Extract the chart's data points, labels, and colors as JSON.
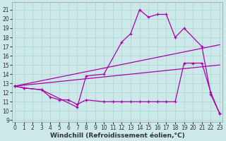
{
  "bg_color": "#cce8e8",
  "grid_color": "#aad4d4",
  "line_color": "#aa00aa",
  "xlim": [
    -0.3,
    23.3
  ],
  "ylim": [
    8.8,
    21.8
  ],
  "xticks": [
    0,
    1,
    2,
    3,
    4,
    5,
    6,
    7,
    8,
    9,
    10,
    11,
    12,
    13,
    14,
    15,
    16,
    17,
    18,
    19,
    20,
    21,
    22,
    23
  ],
  "yticks": [
    9,
    10,
    11,
    12,
    13,
    14,
    15,
    16,
    17,
    18,
    19,
    20,
    21
  ],
  "line1_x": [
    0,
    1,
    3,
    7,
    8,
    10,
    12,
    13,
    14,
    15,
    16,
    17,
    18,
    19,
    21,
    22,
    23
  ],
  "line1_y": [
    12.7,
    12.5,
    12.3,
    10.4,
    13.8,
    14.0,
    17.5,
    18.4,
    21.0,
    20.2,
    20.5,
    20.5,
    18.0,
    19.0,
    17.0,
    11.8,
    9.7
  ],
  "line2_x": [
    0,
    1,
    3,
    4,
    5,
    6,
    7,
    8,
    10,
    11,
    12,
    13,
    14,
    15,
    16,
    17,
    18,
    19,
    20,
    21,
    22,
    23
  ],
  "line2_y": [
    12.7,
    12.5,
    12.3,
    11.5,
    11.2,
    11.2,
    10.7,
    11.2,
    11.0,
    11.0,
    11.0,
    11.0,
    11.0,
    11.0,
    11.0,
    11.0,
    11.0,
    15.2,
    15.2,
    15.2,
    12.0,
    9.7
  ],
  "line3_x": [
    0,
    23
  ],
  "line3_y": [
    12.7,
    17.2
  ],
  "line4_x": [
    0,
    23
  ],
  "line4_y": [
    12.7,
    15.0
  ],
  "xlabel": "Windchill (Refroidissement éolien,°C)",
  "tick_fontsize": 5.5,
  "xlabel_fontsize": 6.5
}
